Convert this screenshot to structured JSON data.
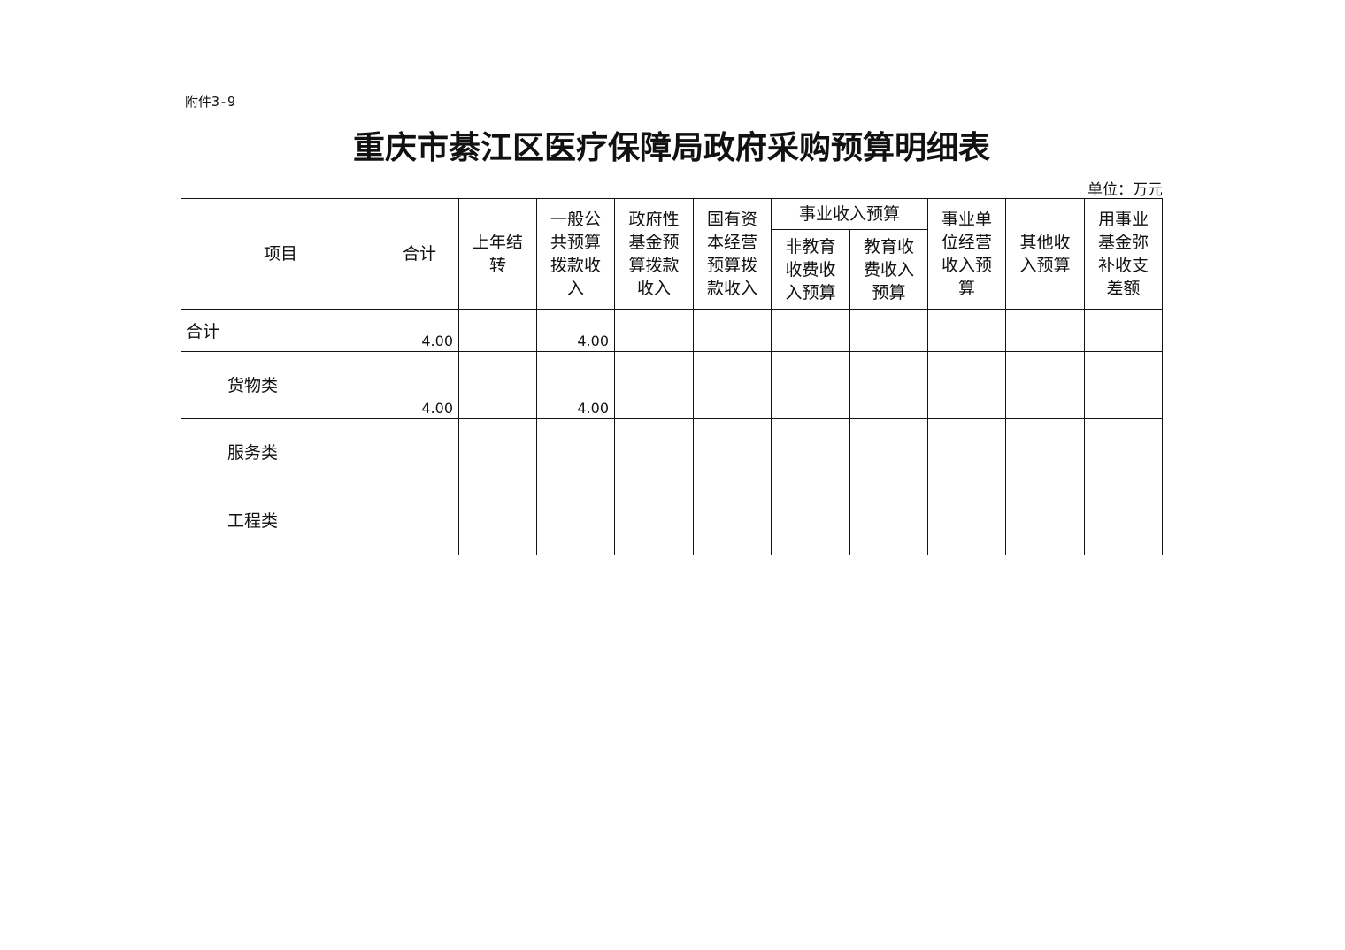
{
  "attachment": "附件3-9",
  "title": "重庆市綦江区医疗保障局政府采购预算明细表",
  "unit": "单位：万元",
  "headers": {
    "item": "项目",
    "total": "合计",
    "carryover": "上年结\n转",
    "general_public": "一般公\n共预算\n拨款收\n入",
    "gov_fund": "政府性\n基金预\n算拨款\n收入",
    "state_capital": "国有资\n本经营\n预算拨\n款收入",
    "business_income": "事业收入预算",
    "non_edu_fee": "非教育\n收费收\n入预算",
    "edu_fee": "教育收\n费收入\n预算",
    "unit_operation": "事业单\n位经营\n收入预\n算",
    "other_income": "其他收\n入预算",
    "fund_offset": "用事业\n基金弥\n补收支\n差额"
  },
  "rows": [
    {
      "item": "合计",
      "total": "4.00",
      "general_public": "4.00"
    },
    {
      "item": "货物类",
      "total": "4.00",
      "general_public": "4.00"
    },
    {
      "item": "服务类"
    },
    {
      "item": "工程类"
    }
  ]
}
